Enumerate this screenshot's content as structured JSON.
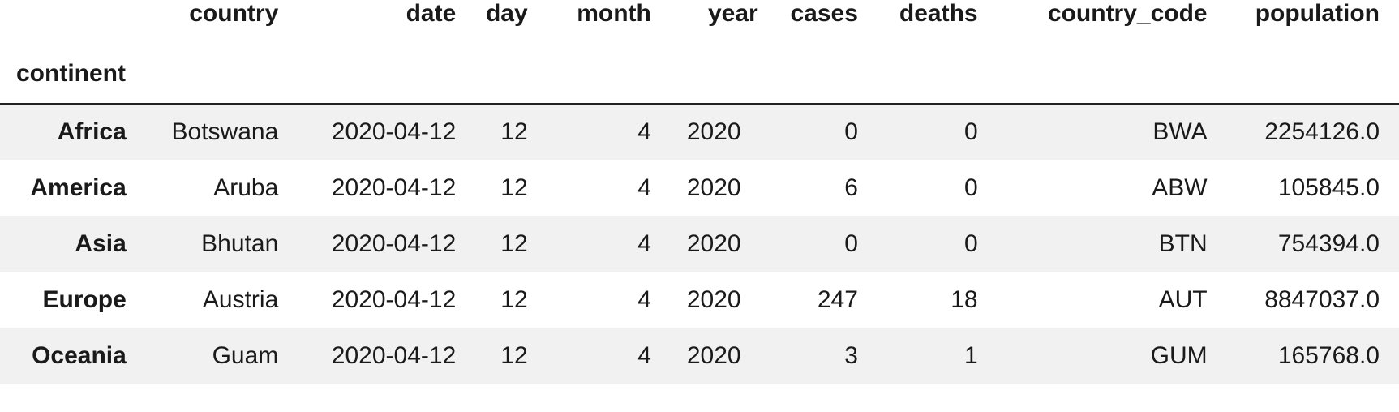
{
  "table": {
    "index_name": "continent",
    "columns": [
      "country",
      "date",
      "day",
      "month",
      "year",
      "cases",
      "deaths",
      "country_code",
      "population"
    ],
    "rows": [
      {
        "index": "Africa",
        "country": "Botswana",
        "date": "2020-04-12",
        "day": "12",
        "month": "4",
        "year": "2020",
        "cases": "0",
        "deaths": "0",
        "country_code": "BWA",
        "population": "2254126.0"
      },
      {
        "index": "America",
        "country": "Aruba",
        "date": "2020-04-12",
        "day": "12",
        "month": "4",
        "year": "2020",
        "cases": "6",
        "deaths": "0",
        "country_code": "ABW",
        "population": "105845.0"
      },
      {
        "index": "Asia",
        "country": "Bhutan",
        "date": "2020-04-12",
        "day": "12",
        "month": "4",
        "year": "2020",
        "cases": "0",
        "deaths": "0",
        "country_code": "BTN",
        "population": "754394.0"
      },
      {
        "index": "Europe",
        "country": "Austria",
        "date": "2020-04-12",
        "day": "12",
        "month": "4",
        "year": "2020",
        "cases": "247",
        "deaths": "18",
        "country_code": "AUT",
        "population": "8847037.0"
      },
      {
        "index": "Oceania",
        "country": "Guam",
        "date": "2020-04-12",
        "day": "12",
        "month": "4",
        "year": "2020",
        "cases": "3",
        "deaths": "1",
        "country_code": "GUM",
        "population": "165768.0"
      }
    ]
  }
}
